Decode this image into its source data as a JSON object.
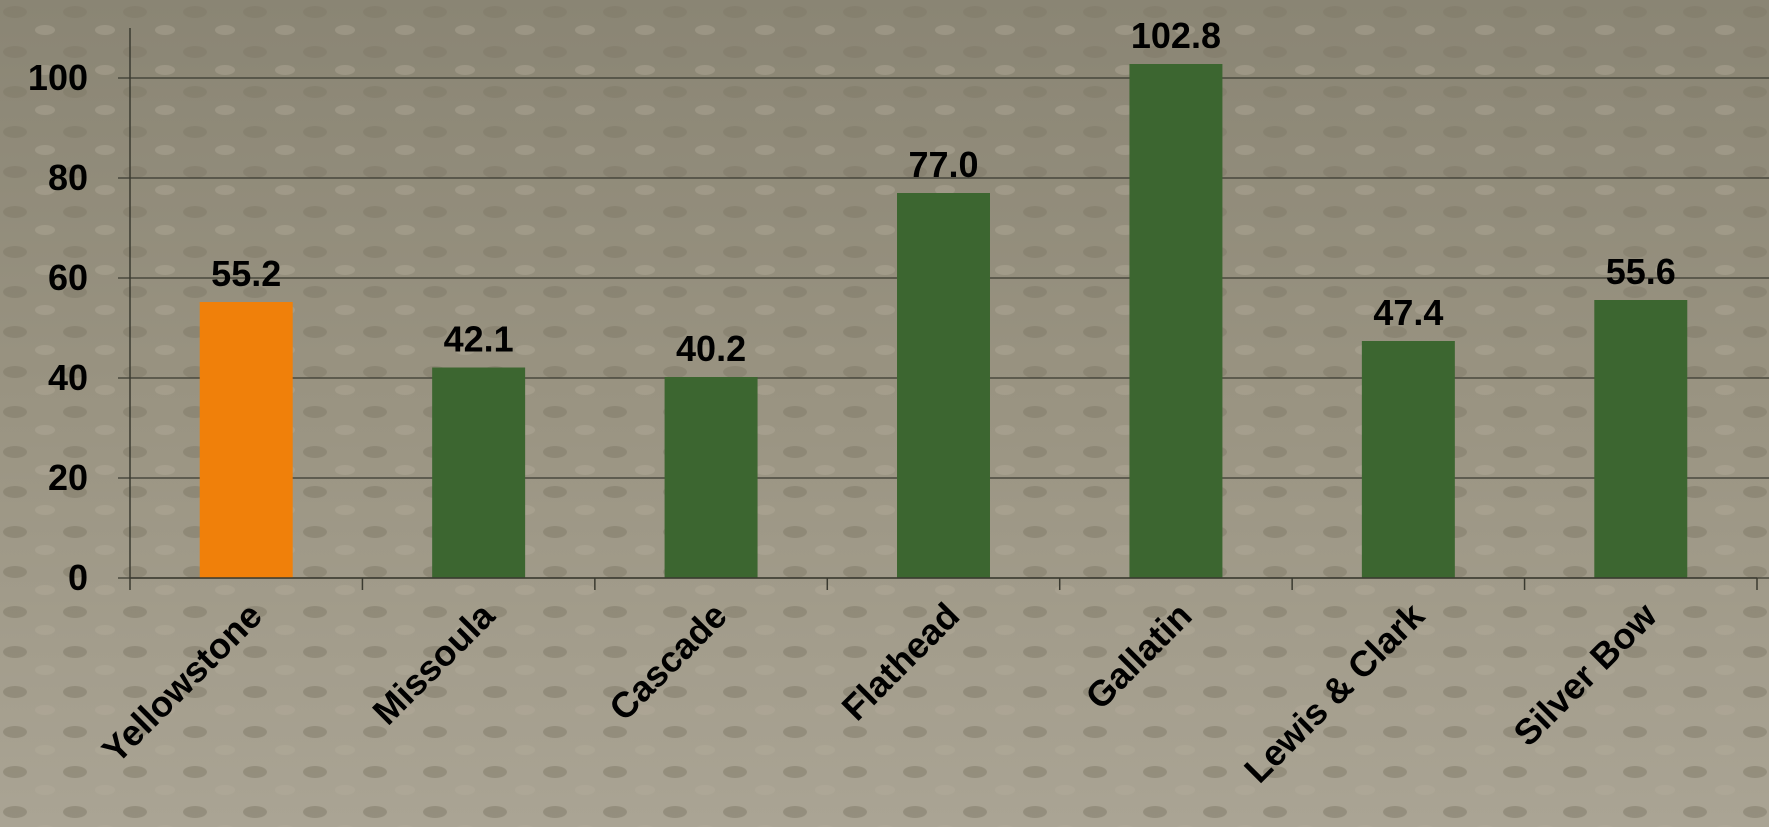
{
  "chart_data": {
    "type": "bar",
    "categories": [
      "Yellowstone",
      "Missoula",
      "Cascade",
      "Flathead",
      "Gallatin",
      "Lewis & Clark",
      "Silver Bow"
    ],
    "values": [
      55.2,
      42.1,
      40.2,
      77.0,
      102.8,
      47.4,
      55.6
    ],
    "value_labels": [
      "55.2",
      "42.1",
      "40.2",
      "77.0",
      "102.8",
      "47.4",
      "55.6"
    ],
    "colors": [
      "#f0800a",
      "#3c6630",
      "#3c6630",
      "#3c6630",
      "#3c6630",
      "#3c6630",
      "#3c6630"
    ],
    "ylim": [
      0,
      110
    ],
    "yticks": [
      0,
      20,
      40,
      60,
      80,
      100
    ],
    "grid": true
  }
}
